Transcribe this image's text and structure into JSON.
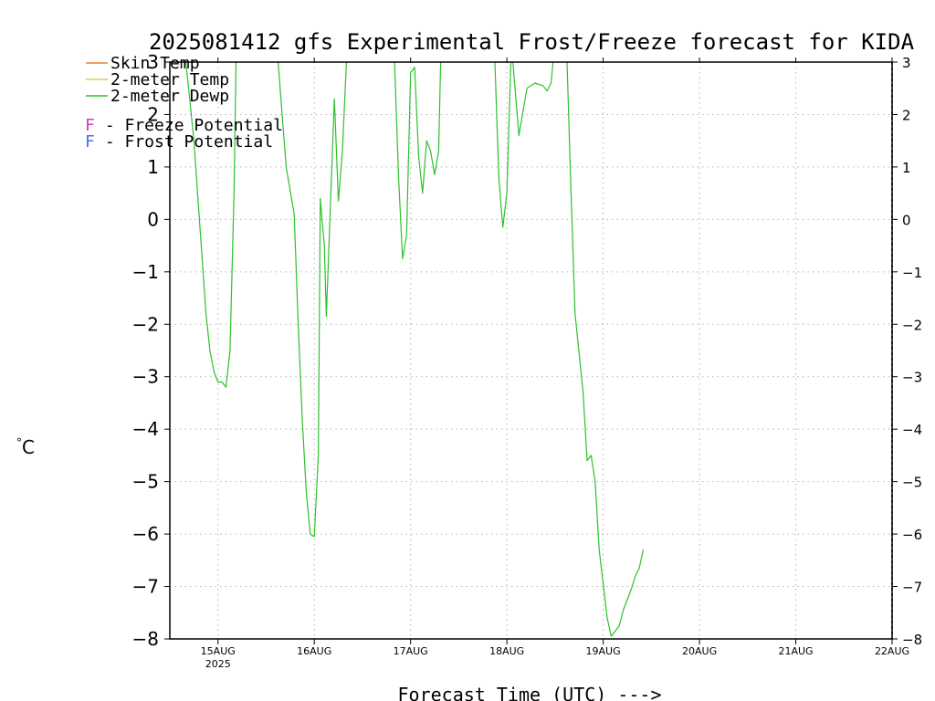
{
  "chart_data": {
    "type": "line",
    "title": "2025081412 gfs Experimental Frost/Freeze forecast for KIDA",
    "xlabel": "Forecast Time (UTC) --->",
    "ylabel": "°C",
    "ylim": [
      -8,
      3
    ],
    "yticks": [
      3,
      2,
      1,
      0,
      -1,
      -2,
      -3,
      -4,
      -5,
      -6,
      -7,
      -8
    ],
    "ytick_labels": [
      "3",
      "2",
      "1",
      "0",
      "−1",
      "−2",
      "−3",
      "−4",
      "−5",
      "−6",
      "−7",
      "−8"
    ],
    "xlim": [
      "2025-08-14T12:00",
      "2025-08-22T00:00"
    ],
    "x_ticks": [
      {
        "x": "2025-08-15T00:00",
        "label": "15AUG",
        "sublabel": "2025"
      },
      {
        "x": "2025-08-16T00:00",
        "label": "16AUG",
        "sublabel": ""
      },
      {
        "x": "2025-08-17T00:00",
        "label": "17AUG",
        "sublabel": ""
      },
      {
        "x": "2025-08-18T00:00",
        "label": "18AUG",
        "sublabel": ""
      },
      {
        "x": "2025-08-19T00:00",
        "label": "19AUG",
        "sublabel": ""
      },
      {
        "x": "2025-08-20T00:00",
        "label": "20AUG",
        "sublabel": ""
      },
      {
        "x": "2025-08-21T00:00",
        "label": "21AUG",
        "sublabel": ""
      },
      {
        "x": "2025-08-22T00:00",
        "label": "22AUG",
        "sublabel": ""
      }
    ],
    "grid": true,
    "legend": {
      "placement": "top-left",
      "entries": [
        {
          "label": "Skin Temp",
          "color": "#e8813c"
        },
        {
          "label": "2-meter Temp",
          "color": "#e6c94a"
        },
        {
          "label": "2-meter Dewp",
          "color": "#2ec02e"
        }
      ],
      "markers": [
        {
          "symbol": "F",
          "text": " - Freeze Potential",
          "color": "#d63ab0"
        },
        {
          "symbol": "F",
          "text": " - Frost Potential",
          "color": "#4a6ee8"
        }
      ]
    },
    "series": [
      {
        "name": "2-meter Dewp",
        "color": "#2ec02e",
        "points": [
          [
            "2025-08-14T16:00",
            3.0
          ],
          [
            "2025-08-14T18:00",
            1.5
          ],
          [
            "2025-08-14T21:00",
            -1.8
          ],
          [
            "2025-08-14T22:00",
            -2.5
          ],
          [
            "2025-08-14T23:00",
            -2.9
          ],
          [
            "2025-08-15T00:00",
            -3.1
          ],
          [
            "2025-08-15T01:00",
            -3.1
          ],
          [
            "2025-08-15T02:00",
            -3.2
          ],
          [
            "2025-08-15T03:00",
            -2.5
          ],
          [
            "2025-08-15T04:00",
            0.5
          ],
          [
            "2025-08-15T04:30",
            3.0
          ]
        ]
      },
      {
        "name": "2-meter Dewp",
        "color": "#2ec02e",
        "points": [
          [
            "2025-08-15T15:00",
            3.0
          ],
          [
            "2025-08-15T17:00",
            1.0
          ],
          [
            "2025-08-15T19:00",
            0.1
          ],
          [
            "2025-08-15T20:00",
            -2.0
          ],
          [
            "2025-08-15T21:00",
            -3.8
          ],
          [
            "2025-08-15T22:00",
            -5.2
          ],
          [
            "2025-08-15T23:00",
            -6.0
          ],
          [
            "2025-08-16T00:00",
            -6.05
          ],
          [
            "2025-08-16T01:00",
            -4.5
          ],
          [
            "2025-08-16T01:30",
            0.4
          ],
          [
            "2025-08-16T02:30",
            -0.5
          ],
          [
            "2025-08-16T03:00",
            -1.85
          ],
          [
            "2025-08-16T05:00",
            2.3
          ],
          [
            "2025-08-16T06:00",
            0.35
          ],
          [
            "2025-08-16T07:00",
            1.3
          ],
          [
            "2025-08-16T08:00",
            3.0
          ]
        ]
      },
      {
        "name": "2-meter Dewp",
        "color": "#2ec02e",
        "points": [
          [
            "2025-08-16T20:00",
            3.0
          ],
          [
            "2025-08-16T21:00",
            0.8
          ],
          [
            "2025-08-16T22:00",
            -0.75
          ],
          [
            "2025-08-16T23:00",
            -0.3
          ],
          [
            "2025-08-17T00:00",
            2.8
          ],
          [
            "2025-08-17T01:00",
            2.9
          ],
          [
            "2025-08-17T02:00",
            1.2
          ],
          [
            "2025-08-17T03:00",
            0.5
          ],
          [
            "2025-08-17T04:00",
            1.5
          ],
          [
            "2025-08-17T05:00",
            1.3
          ],
          [
            "2025-08-17T06:00",
            0.85
          ],
          [
            "2025-08-17T07:00",
            1.3
          ],
          [
            "2025-08-17T07:30",
            3.0
          ]
        ]
      },
      {
        "name": "2-meter Dewp",
        "color": "#2ec02e",
        "points": [
          [
            "2025-08-17T21:00",
            3.0
          ],
          [
            "2025-08-17T22:00",
            0.8
          ],
          [
            "2025-08-17T23:00",
            -0.15
          ],
          [
            "2025-08-18T00:00",
            0.5
          ],
          [
            "2025-08-18T01:00",
            3.0
          ]
        ]
      },
      {
        "name": "2-meter Dewp",
        "color": "#2ec02e",
        "points": [
          [
            "2025-08-18T01:30",
            3.0
          ],
          [
            "2025-08-18T03:00",
            1.6
          ],
          [
            "2025-08-18T05:00",
            2.5
          ],
          [
            "2025-08-18T07:00",
            2.6
          ],
          [
            "2025-08-18T09:00",
            2.55
          ],
          [
            "2025-08-18T10:00",
            2.45
          ],
          [
            "2025-08-18T11:00",
            2.6
          ],
          [
            "2025-08-18T11:30",
            3.0
          ]
        ]
      },
      {
        "name": "2-meter Dewp",
        "color": "#2ec02e",
        "points": [
          [
            "2025-08-18T15:00",
            3.0
          ],
          [
            "2025-08-18T16:00",
            0.5
          ],
          [
            "2025-08-18T17:00",
            -1.8
          ],
          [
            "2025-08-18T19:00",
            -3.3
          ],
          [
            "2025-08-18T20:00",
            -4.6
          ],
          [
            "2025-08-18T21:00",
            -4.5
          ],
          [
            "2025-08-18T22:00",
            -5.0
          ],
          [
            "2025-08-18T23:00",
            -6.3
          ],
          [
            "2025-08-19T01:00",
            -7.6
          ],
          [
            "2025-08-19T02:00",
            -7.95
          ],
          [
            "2025-08-19T03:00",
            -7.85
          ],
          [
            "2025-08-19T04:00",
            -7.75
          ],
          [
            "2025-08-19T05:00",
            -7.45
          ],
          [
            "2025-08-19T06:00",
            -7.25
          ],
          [
            "2025-08-19T07:00",
            -7.05
          ],
          [
            "2025-08-19T08:00",
            -6.8
          ],
          [
            "2025-08-19T09:00",
            -6.65
          ],
          [
            "2025-08-19T10:00",
            -6.3
          ]
        ]
      }
    ]
  }
}
